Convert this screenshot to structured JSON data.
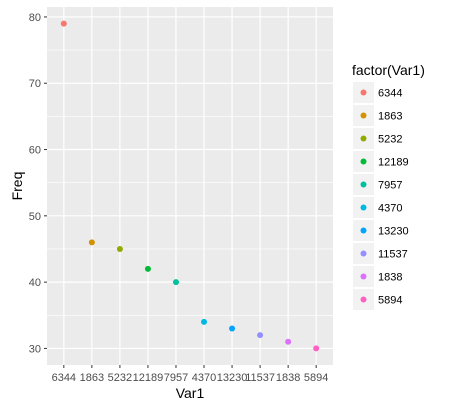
{
  "chart_data": {
    "type": "scatter",
    "xlabel": "Var1",
    "ylabel": "Freq",
    "ylim": [
      27.5,
      81.5
    ],
    "y_ticks": [
      30,
      40,
      50,
      60,
      70,
      80
    ],
    "categories": [
      "6344",
      "1863",
      "5232",
      "12189",
      "7957",
      "4370",
      "13230",
      "11537",
      "1838",
      "5894"
    ],
    "values": [
      79,
      46,
      45,
      42,
      40,
      34,
      33,
      32,
      31,
      30
    ],
    "grid": true,
    "legend": {
      "title": "factor(Var1)",
      "placement": "right",
      "entries": [
        "6344",
        "1863",
        "5232",
        "12189",
        "7957",
        "4370",
        "13230",
        "11537",
        "1838",
        "5894"
      ]
    },
    "colors": [
      "#F8766D",
      "#D39200",
      "#93AA00",
      "#00BA38",
      "#00C19F",
      "#00B9E3",
      "#00A5FF",
      "#9590FF",
      "#DB72FB",
      "#FF61C3"
    ],
    "panel_background": "#EBEBEB",
    "grid_color": "#FFFFFF"
  }
}
